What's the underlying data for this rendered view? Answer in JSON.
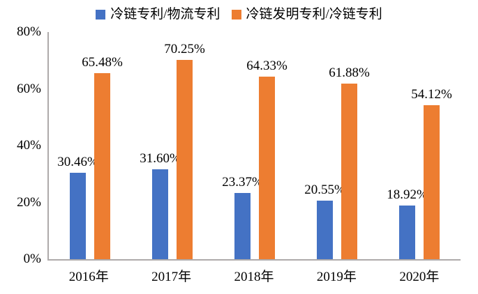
{
  "chart_data": {
    "type": "bar",
    "title": "",
    "xlabel": "",
    "ylabel": "",
    "categories": [
      "2016年",
      "2017年",
      "2018年",
      "2019年",
      "2020年"
    ],
    "series": [
      {
        "name": "冷链专利/物流专利",
        "color": "#4472C4",
        "values": [
          30.46,
          31.6,
          23.37,
          20.55,
          18.92
        ],
        "labels": [
          "30.46%",
          "31.60%",
          "23.37%",
          "20.55%",
          "18.92%"
        ]
      },
      {
        "name": "冷链发明专利/冷链专利",
        "color": "#ED7D31",
        "values": [
          65.48,
          70.25,
          64.33,
          61.88,
          54.12
        ],
        "labels": [
          "65.48%",
          "70.25%",
          "64.33%",
          "61.88%",
          "54.12%"
        ]
      }
    ],
    "ylim": [
      0,
      80
    ],
    "yticks": [
      "80%",
      "60%",
      "40%",
      "20%",
      "0%"
    ],
    "grid": false,
    "legend_position": "top"
  },
  "colors": {
    "axis_line": "#AEAAAA",
    "text": "#000000",
    "background": "#FFFFFF"
  }
}
